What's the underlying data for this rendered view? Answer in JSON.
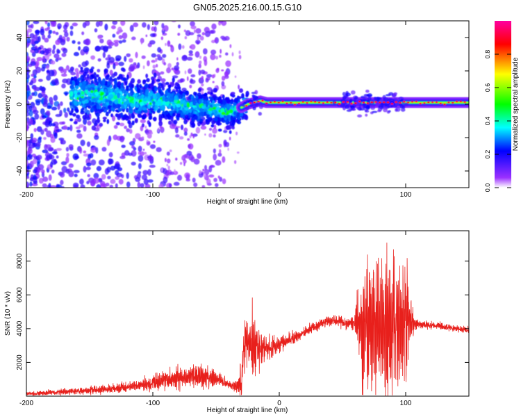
{
  "figure_title": "GN05.2025.216.00.15.G10",
  "chart_data": [
    {
      "type": "heatmap",
      "xlabel": "Height of straight line (km)",
      "ylabel": "Frequency (Hz)",
      "xlim": [
        -200,
        150
      ],
      "ylim": [
        -50,
        50
      ],
      "x_ticks": [
        -200,
        -100,
        0,
        100
      ],
      "x_tick_labels": [
        "-200",
        "-100",
        "0",
        "100"
      ],
      "y_ticks": [
        -40,
        -20,
        0,
        20,
        40
      ],
      "y_tick_labels": [
        "-40",
        "-20",
        "0",
        "20",
        "40"
      ],
      "colorbar": {
        "label": "Normalized spectral amplitude",
        "range": [
          0,
          1
        ],
        "ticks": [
          0,
          0.2,
          0.4,
          0.6,
          0.8
        ],
        "tick_labels": [
          "0.0",
          "0.2",
          "0.4",
          "0.6",
          "0.8"
        ],
        "colormap": [
          "#ffffff",
          "#9b30ff",
          "#0000ff",
          "#00ffff",
          "#00ff00",
          "#ffff00",
          "#ff0000",
          "#ff00a0"
        ]
      },
      "ridge": {
        "x": [
          -160,
          -150,
          -140,
          -130,
          -120,
          -110,
          -100,
          -90,
          -80,
          -70,
          -60,
          -50,
          -40,
          -30,
          -25,
          -20,
          -15,
          -10,
          0,
          20,
          50,
          55,
          60,
          70,
          80,
          90,
          100,
          150
        ],
        "y": [
          5,
          6,
          5,
          4,
          3,
          2,
          2,
          1,
          0,
          -1,
          -2,
          -3,
          -5,
          -2,
          0,
          1,
          2,
          1,
          1,
          1,
          1,
          1,
          1,
          1,
          1,
          1,
          1,
          1
        ]
      },
      "grid": false
    },
    {
      "type": "line",
      "xlabel": "Height of straight line (km)",
      "ylabel": "SNR (10 * v/v)",
      "xlim": [
        -200,
        150
      ],
      "ylim": [
        0,
        9800
      ],
      "x_ticks": [
        -200,
        -100,
        0,
        100
      ],
      "x_tick_labels": [
        "-200",
        "-100",
        "0",
        "100"
      ],
      "y_ticks": [
        2000,
        4000,
        6000,
        8000
      ],
      "y_tick_labels": [
        "2000",
        "4000",
        "6000",
        "8000"
      ],
      "line_color": "#e8201c",
      "envelope": {
        "x": [
          -200,
          -180,
          -160,
          -140,
          -120,
          -105,
          -95,
          -85,
          -75,
          -65,
          -55,
          -45,
          -35,
          -30,
          -28,
          -25,
          -20,
          -15,
          -10,
          -5,
          0,
          10,
          20,
          30,
          40,
          50,
          55,
          60,
          65,
          70,
          75,
          80,
          85,
          90,
          95,
          100,
          105,
          110,
          120,
          130,
          140,
          150
        ],
        "y": [
          150,
          200,
          300,
          400,
          550,
          700,
          900,
          1000,
          1100,
          1200,
          1150,
          900,
          500,
          900,
          3000,
          3400,
          2600,
          3000,
          2900,
          2900,
          3100,
          3400,
          3800,
          4200,
          4500,
          4400,
          4300,
          4400,
          4200,
          4100,
          4300,
          4200,
          4100,
          4300,
          4200,
          4500,
          4200,
          4300,
          4200,
          4100,
          4000,
          3900
        ]
      },
      "oscillation_amplitude": {
        "x": [
          -200,
          -110,
          -100,
          -90,
          -80,
          -70,
          -60,
          -50,
          -40,
          -32,
          -30,
          -28,
          -25,
          -20,
          -15,
          -10,
          0,
          20,
          40,
          50,
          60,
          62,
          65,
          70,
          75,
          80,
          85,
          90,
          95,
          100,
          103,
          106,
          110,
          150
        ],
        "y": [
          150,
          300,
          500,
          550,
          600,
          650,
          650,
          500,
          250,
          500,
          1800,
          1600,
          1900,
          2000,
          1200,
          800,
          500,
          300,
          350,
          300,
          500,
          2000,
          3800,
          4000,
          3800,
          4400,
          5200,
          4200,
          4000,
          3600,
          2200,
          600,
          250,
          200
        ]
      },
      "grid": false
    }
  ]
}
